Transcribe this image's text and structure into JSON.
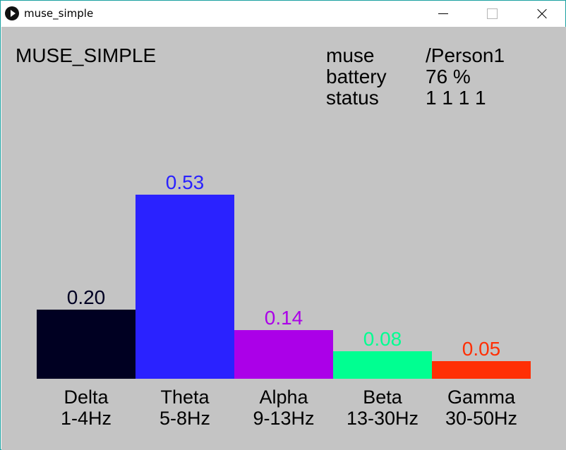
{
  "window": {
    "title": "muse_simple",
    "icon": "play-icon",
    "controls": {
      "minimize": "minimize-icon",
      "maximize": "maximize-icon",
      "close": "close-icon"
    }
  },
  "app": {
    "title": "MUSE_SIMPLE",
    "info": [
      {
        "label": "muse",
        "value": "/Person1"
      },
      {
        "label": "battery",
        "value": "76 %"
      },
      {
        "label": "status",
        "value": "1 1 1 1"
      }
    ]
  },
  "colors": {
    "canvas_background": "#c4c4c4",
    "delta": "#000022",
    "theta": "#2a22ff",
    "alpha": "#ab00e8",
    "beta": "#00ff91",
    "gamma": "#ff2f05"
  },
  "chart_data": {
    "type": "bar",
    "categories": [
      "Delta",
      "Theta",
      "Alpha",
      "Beta",
      "Gamma"
    ],
    "ranges": [
      "1-4Hz",
      "5-8Hz",
      "9-13Hz",
      "13-30Hz",
      "30-50Hz"
    ],
    "values": [
      0.2,
      0.53,
      0.14,
      0.08,
      0.05
    ],
    "value_labels": [
      "0.20",
      "0.53",
      "0.14",
      "0.08",
      "0.05"
    ],
    "colors": [
      "#000022",
      "#2a22ff",
      "#ab00e8",
      "#00ff91",
      "#ff2f05"
    ],
    "ylim": [
      0,
      0.53
    ]
  }
}
